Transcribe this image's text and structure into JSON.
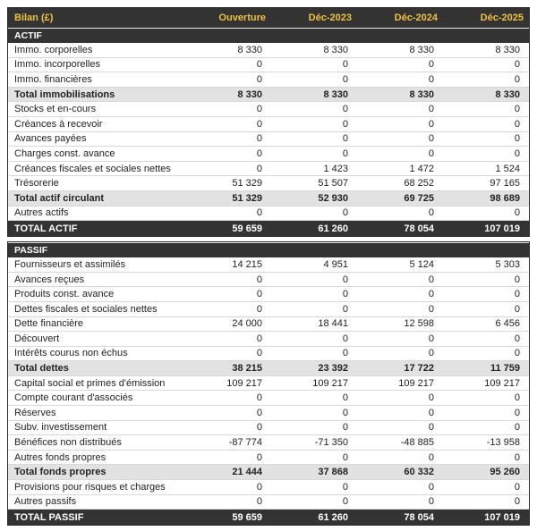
{
  "table": {
    "title": "Bilan (£)",
    "columns": [
      "Ouverture",
      "Déc-2023",
      "Déc-2024",
      "Déc-2025"
    ],
    "sections": [
      {
        "name": "ACTIF",
        "rows": [
          {
            "label": "Immo. corporelles",
            "values": [
              "8 330",
              "8 330",
              "8 330",
              "8 330"
            ],
            "style": "normal"
          },
          {
            "label": "Immo. incorporelles",
            "values": [
              "0",
              "0",
              "0",
              "0"
            ],
            "style": "normal"
          },
          {
            "label": "Immo. financières",
            "values": [
              "0",
              "0",
              "0",
              "0"
            ],
            "style": "normal"
          },
          {
            "label": "Total immobilisations",
            "values": [
              "8 330",
              "8 330",
              "8 330",
              "8 330"
            ],
            "style": "subtotal"
          },
          {
            "label": "Stocks et en-cours",
            "values": [
              "0",
              "0",
              "0",
              "0"
            ],
            "style": "normal"
          },
          {
            "label": "Créances à recevoir",
            "values": [
              "0",
              "0",
              "0",
              "0"
            ],
            "style": "normal"
          },
          {
            "label": "Avances payées",
            "values": [
              "0",
              "0",
              "0",
              "0"
            ],
            "style": "normal"
          },
          {
            "label": "Charges const. avance",
            "values": [
              "0",
              "0",
              "0",
              "0"
            ],
            "style": "normal"
          },
          {
            "label": "Créances fiscales et sociales nettes",
            "values": [
              "0",
              "1 423",
              "1 472",
              "1 524"
            ],
            "style": "normal"
          },
          {
            "label": "Trésorerie",
            "values": [
              "51 329",
              "51 507",
              "68 252",
              "97 165"
            ],
            "style": "normal"
          },
          {
            "label": "Total actif circulant",
            "values": [
              "51 329",
              "52 930",
              "69 725",
              "98 689"
            ],
            "style": "subtotal"
          },
          {
            "label": "Autres actifs",
            "values": [
              "0",
              "0",
              "0",
              "0"
            ],
            "style": "normal"
          },
          {
            "label": "TOTAL ACTIF",
            "values": [
              "59 659",
              "61 260",
              "78 054",
              "107 019"
            ],
            "style": "grandtotal"
          }
        ]
      },
      {
        "name": "PASSIF",
        "rows": [
          {
            "label": "Fournisseurs et assimilés",
            "values": [
              "14 215",
              "4 951",
              "5 124",
              "5 303"
            ],
            "style": "normal"
          },
          {
            "label": "Avances reçues",
            "values": [
              "0",
              "0",
              "0",
              "0"
            ],
            "style": "normal"
          },
          {
            "label": "Produits const. avance",
            "values": [
              "0",
              "0",
              "0",
              "0"
            ],
            "style": "normal"
          },
          {
            "label": "Dettes fiscales et sociales nettes",
            "values": [
              "0",
              "0",
              "0",
              "0"
            ],
            "style": "normal"
          },
          {
            "label": "Dette financière",
            "values": [
              "24 000",
              "18 441",
              "12 598",
              "6 456"
            ],
            "style": "normal"
          },
          {
            "label": "Découvert",
            "values": [
              "0",
              "0",
              "0",
              "0"
            ],
            "style": "normal"
          },
          {
            "label": "Intérêts courus non échus",
            "values": [
              "0",
              "0",
              "0",
              "0"
            ],
            "style": "normal"
          },
          {
            "label": "Total dettes",
            "values": [
              "38 215",
              "23 392",
              "17 722",
              "11 759"
            ],
            "style": "subtotal"
          },
          {
            "label": "Capital social et primes d'émission",
            "values": [
              "109 217",
              "109 217",
              "109 217",
              "109 217"
            ],
            "style": "normal"
          },
          {
            "label": "Compte courant d'associés",
            "values": [
              "0",
              "0",
              "0",
              "0"
            ],
            "style": "normal"
          },
          {
            "label": "Réserves",
            "values": [
              "0",
              "0",
              "0",
              "0"
            ],
            "style": "normal"
          },
          {
            "label": "Subv. investissement",
            "values": [
              "0",
              "0",
              "0",
              "0"
            ],
            "style": "normal"
          },
          {
            "label": "Bénéfices non distribués",
            "values": [
              "-87 774",
              "-71 350",
              "-48 885",
              "-13 958"
            ],
            "style": "normal"
          },
          {
            "label": "Autres fonds propres",
            "values": [
              "0",
              "0",
              "0",
              "0"
            ],
            "style": "normal"
          },
          {
            "label": "Total fonds propres",
            "values": [
              "21 444",
              "37 868",
              "60 332",
              "95 260"
            ],
            "style": "subtotal"
          },
          {
            "label": "Provisions pour risques et charges",
            "values": [
              "0",
              "0",
              "0",
              "0"
            ],
            "style": "normal"
          },
          {
            "label": "Autres passifs",
            "values": [
              "0",
              "0",
              "0",
              "0"
            ],
            "style": "normal"
          },
          {
            "label": "TOTAL PASSIF",
            "values": [
              "59 659",
              "61 260",
              "78 054",
              "107 019"
            ],
            "style": "grandtotal"
          }
        ]
      }
    ]
  },
  "colors": {
    "header_bg": "#333333",
    "header_text": "#f2c230",
    "section_bg": "#333333",
    "section_text": "#ffffff",
    "subtotal_bg": "#e2e2e2",
    "grandtotal_bg": "#333333",
    "grandtotal_text": "#ffffff",
    "body_text": "#222222",
    "row_border": "#d8d8d8"
  }
}
